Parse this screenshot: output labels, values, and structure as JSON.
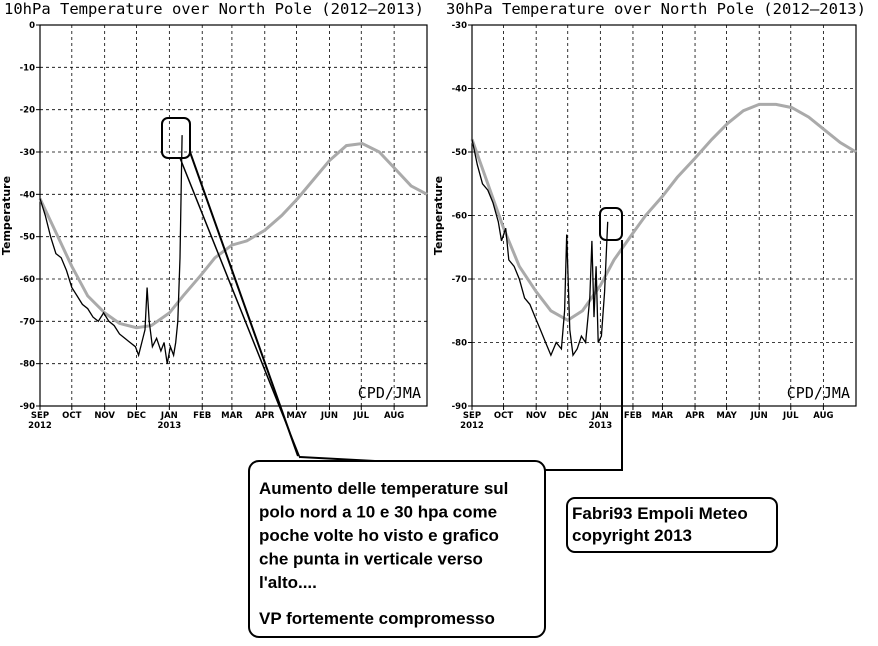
{
  "chart_data": [
    {
      "type": "line",
      "title": "10hPa Temperature over North Pole (2012–2013)",
      "y_label": "Temperature",
      "watermark": "CPD/JMA",
      "xlim": [
        0,
        365
      ],
      "ylim": [
        -90,
        0
      ],
      "xticks": [
        {
          "value": 0,
          "label": "SEP"
        },
        {
          "value": 30,
          "label": "OCT"
        },
        {
          "value": 61,
          "label": "NOV"
        },
        {
          "value": 91,
          "label": "DEC"
        },
        {
          "value": 122,
          "label": "JAN"
        },
        {
          "value": 153,
          "label": "FEB"
        },
        {
          "value": 181,
          "label": "MAR"
        },
        {
          "value": 212,
          "label": "APR"
        },
        {
          "value": 242,
          "label": "MAY"
        },
        {
          "value": 273,
          "label": "JUN"
        },
        {
          "value": 303,
          "label": "JUL"
        },
        {
          "value": 334,
          "label": "AUG"
        }
      ],
      "xtick_years": [
        {
          "value": 0,
          "label": "2012"
        },
        {
          "value": 122,
          "label": "2013"
        }
      ],
      "yticks": [
        0,
        -10,
        -20,
        -30,
        -40,
        -50,
        -60,
        -70,
        -80,
        -90
      ],
      "grid": true,
      "series": [
        {
          "color": "#aaaaaa",
          "x": [
            0,
            15,
            30,
            45,
            61,
            75,
            91,
            105,
            122,
            135,
            152,
            165,
            181,
            195,
            212,
            228,
            243,
            258,
            273,
            289,
            304,
            320,
            335,
            350,
            365
          ],
          "values": [
            -41,
            -49,
            -57,
            -64,
            -68,
            -70.5,
            -71.5,
            -71,
            -68,
            -64,
            -59,
            -55,
            -52,
            -51,
            -48.5,
            -45,
            -41,
            -36.5,
            -32,
            -28.5,
            -28,
            -30,
            -34,
            -38,
            -40
          ]
        },
        {
          "color": "#000000",
          "x": [
            0,
            5,
            10,
            15,
            20,
            25,
            30,
            35,
            40,
            45,
            50,
            55,
            60,
            65,
            70,
            75,
            80,
            85,
            90,
            93,
            96,
            99,
            101,
            103,
            106,
            110,
            114,
            117,
            120,
            123,
            126,
            128,
            130,
            132,
            134
          ],
          "values": [
            -41,
            -45,
            -50,
            -54,
            -55,
            -58,
            -62,
            -64,
            -66,
            -67,
            -69,
            -70,
            -68,
            -70,
            -71,
            -73,
            -74,
            -75,
            -76,
            -78,
            -75,
            -72,
            -62,
            -70,
            -76,
            -74,
            -77,
            -75,
            -80,
            -76,
            -78,
            -75,
            -70,
            -55,
            -26
          ]
        }
      ]
    },
    {
      "type": "line",
      "title": "30hPa Temperature over North Pole (2012–2013)",
      "y_label": "Temperature",
      "watermark": "CPD/JMA",
      "xlim": [
        0,
        365
      ],
      "ylim": [
        -90,
        -30
      ],
      "xticks": [
        {
          "value": 0,
          "label": "SEP"
        },
        {
          "value": 30,
          "label": "OCT"
        },
        {
          "value": 61,
          "label": "NOV"
        },
        {
          "value": 91,
          "label": "DEC"
        },
        {
          "value": 122,
          "label": "JAN"
        },
        {
          "value": 153,
          "label": "FEB"
        },
        {
          "value": 181,
          "label": "MAR"
        },
        {
          "value": 212,
          "label": "APR"
        },
        {
          "value": 242,
          "label": "MAY"
        },
        {
          "value": 273,
          "label": "JUN"
        },
        {
          "value": 303,
          "label": "JUL"
        },
        {
          "value": 334,
          "label": "AUG"
        }
      ],
      "xtick_years": [
        {
          "value": 0,
          "label": "2012"
        },
        {
          "value": 122,
          "label": "2013"
        }
      ],
      "yticks": [
        -30,
        -40,
        -50,
        -60,
        -70,
        -80,
        -90
      ],
      "grid": true,
      "series": [
        {
          "color": "#aaaaaa",
          "x": [
            0,
            15,
            30,
            45,
            61,
            75,
            91,
            105,
            122,
            135,
            152,
            165,
            181,
            195,
            212,
            228,
            243,
            258,
            273,
            289,
            304,
            320,
            335,
            350,
            365
          ],
          "values": [
            -48,
            -55,
            -62,
            -68,
            -72,
            -75,
            -76.5,
            -75,
            -71,
            -67,
            -63,
            -60,
            -57,
            -54,
            -51,
            -48,
            -45.5,
            -43.5,
            -42.5,
            -42.5,
            -43,
            -44.5,
            -46.5,
            -48.5,
            -50
          ]
        },
        {
          "color": "#000000",
          "x": [
            0,
            5,
            10,
            15,
            20,
            25,
            28,
            32,
            35,
            40,
            45,
            50,
            55,
            60,
            65,
            70,
            75,
            80,
            85,
            88,
            90,
            93,
            96,
            100,
            104,
            108,
            112,
            114,
            116,
            118,
            120,
            123,
            126,
            129
          ],
          "values": [
            -48,
            -52,
            -55,
            -56,
            -58,
            -61,
            -64,
            -62,
            -67,
            -68,
            -70,
            -73,
            -74,
            -76,
            -78,
            -80,
            -82,
            -80,
            -81,
            -75,
            -63,
            -78,
            -82,
            -81,
            -79,
            -80,
            -73,
            -64,
            -76,
            -68,
            -80,
            -79,
            -72,
            -61
          ]
        }
      ]
    }
  ],
  "annotations": {
    "callout_lines": [
      "Aumento delle temperature sul",
      "polo nord a 10 e 30 hpa come",
      "poche volte ho visto e grafico",
      "che punta in verticale verso",
      "l'alto...."
    ],
    "callout_conclusion": "VP fortemente compromesso",
    "credit_lines": [
      "Fabri93 Empoli Meteo",
      "copyright 2013"
    ]
  }
}
